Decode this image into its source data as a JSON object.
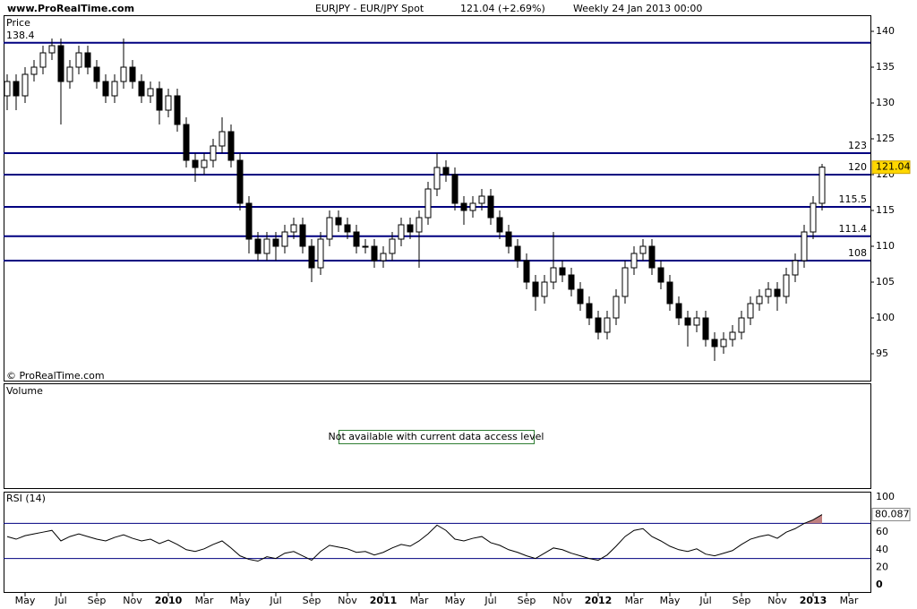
{
  "header": {
    "site": "www.ProRealTime.com",
    "symbol": "EURJPY - EUR/JPY Spot",
    "change": "121.04 (+2.69%)",
    "period": "Weekly  24 Jan 2013 00:00"
  },
  "volume_panel": {
    "label": "Volume",
    "message": "Not available with current data access level"
  },
  "chart_data": [
    {
      "type": "candlestick",
      "title": "Price",
      "copyright": "© ProRealTime.com",
      "up_color": "#ffffff",
      "down_color": "#000000",
      "level_color": "#000080",
      "xlim": [
        -1.2,
        47.2
      ],
      "ylim": [
        91.25,
        142.25
      ],
      "yticks": [
        95,
        100,
        105,
        110,
        115,
        120,
        125,
        130,
        135,
        140
      ],
      "xticks": [
        {
          "value": 0,
          "label": "May"
        },
        {
          "value": 2,
          "label": "Jul"
        },
        {
          "value": 4,
          "label": "Sep"
        },
        {
          "value": 6,
          "label": "Nov"
        },
        {
          "value": 8,
          "label": "2010"
        },
        {
          "value": 10,
          "label": "Mar"
        },
        {
          "value": 12,
          "label": "May"
        },
        {
          "value": 14,
          "label": "Jul"
        },
        {
          "value": 16,
          "label": "Sep"
        },
        {
          "value": 18,
          "label": "Nov"
        },
        {
          "value": 20,
          "label": "2011"
        },
        {
          "value": 22,
          "label": "Mar"
        },
        {
          "value": 24,
          "label": "May"
        },
        {
          "value": 26,
          "label": "Jul"
        },
        {
          "value": 28,
          "label": "Sep"
        },
        {
          "value": 30,
          "label": "Nov"
        },
        {
          "value": 32,
          "label": "2012"
        },
        {
          "value": 34,
          "label": "Mar"
        },
        {
          "value": 36,
          "label": "May"
        },
        {
          "value": 38,
          "label": "Jul"
        },
        {
          "value": 40,
          "label": "Sep"
        },
        {
          "value": 42,
          "label": "Nov"
        },
        {
          "value": 44,
          "label": "2013"
        },
        {
          "value": 46,
          "label": "Mar"
        }
      ],
      "levels": [
        {
          "value": 138.4,
          "side": "left"
        },
        {
          "value": 123,
          "side": "right"
        },
        {
          "value": 120,
          "side": "right"
        },
        {
          "value": 115.5,
          "side": "right"
        },
        {
          "value": 111.4,
          "side": "right"
        },
        {
          "value": 108,
          "side": "right"
        }
      ],
      "x": [
        -1,
        -0.5,
        0,
        0.5,
        1,
        1.5,
        2,
        2.5,
        3,
        3.5,
        4,
        4.5,
        5,
        5.5,
        6,
        6.5,
        7,
        7.5,
        8,
        8.5,
        9,
        9.5,
        10,
        10.5,
        11,
        11.5,
        12,
        12.5,
        13,
        13.5,
        14,
        14.5,
        15,
        15.5,
        16,
        16.5,
        17,
        17.5,
        18,
        18.5,
        19,
        19.5,
        20,
        20.5,
        21,
        21.5,
        22,
        22.5,
        23,
        23.5,
        24,
        24.5,
        25,
        25.5,
        26,
        26.5,
        27,
        27.5,
        28,
        28.5,
        29,
        29.5,
        30,
        30.5,
        31,
        31.5,
        32,
        32.5,
        33,
        33.5,
        34,
        34.5,
        35,
        35.5,
        36,
        36.5,
        37,
        37.5,
        38,
        38.5,
        39,
        39.5,
        40,
        40.5,
        41,
        41.5,
        42,
        42.5,
        43,
        43.5,
        44,
        44.5
      ],
      "ohlc": [
        [
          131,
          134,
          129,
          133
        ],
        [
          133,
          134,
          129,
          131
        ],
        [
          131,
          135,
          130,
          134
        ],
        [
          134,
          136,
          133,
          135
        ],
        [
          135,
          138,
          134,
          137
        ],
        [
          137,
          139,
          136,
          138
        ],
        [
          138,
          139,
          127,
          133
        ],
        [
          133,
          136,
          132,
          135
        ],
        [
          135,
          138,
          134,
          137
        ],
        [
          137,
          138,
          134,
          135
        ],
        [
          135,
          136,
          132,
          133
        ],
        [
          133,
          134,
          130,
          131
        ],
        [
          131,
          134,
          130,
          133
        ],
        [
          133,
          139,
          132,
          135
        ],
        [
          135,
          136,
          132,
          133
        ],
        [
          133,
          134,
          130,
          131
        ],
        [
          131,
          133,
          130,
          132
        ],
        [
          132,
          133,
          127,
          129
        ],
        [
          129,
          132,
          128,
          131
        ],
        [
          131,
          132,
          126,
          127
        ],
        [
          127,
          128,
          121,
          122
        ],
        [
          122,
          123,
          119,
          121
        ],
        [
          121,
          123,
          120,
          122
        ],
        [
          122,
          125,
          121,
          124
        ],
        [
          124,
          128,
          123,
          126
        ],
        [
          126,
          127,
          121,
          122
        ],
        [
          122,
          123,
          115,
          116
        ],
        [
          116,
          117,
          109,
          111
        ],
        [
          111,
          112,
          108,
          109
        ],
        [
          109,
          112,
          108,
          111
        ],
        [
          111,
          112,
          108,
          110
        ],
        [
          110,
          113,
          109,
          112
        ],
        [
          112,
          114,
          111,
          113
        ],
        [
          113,
          114,
          109,
          110
        ],
        [
          110,
          111,
          105,
          107
        ],
        [
          107,
          112,
          106,
          111
        ],
        [
          111,
          115,
          110,
          114
        ],
        [
          114,
          115,
          112,
          113
        ],
        [
          113,
          114,
          111,
          112
        ],
        [
          112,
          113,
          109,
          110
        ],
        [
          110,
          111,
          109,
          110
        ],
        [
          110,
          111,
          107,
          108
        ],
        [
          108,
          110,
          107,
          109
        ],
        [
          109,
          112,
          108,
          111
        ],
        [
          111,
          114,
          110,
          113
        ],
        [
          113,
          114,
          111,
          112
        ],
        [
          112,
          115,
          107,
          114
        ],
        [
          114,
          119,
          113,
          118
        ],
        [
          118,
          123,
          117,
          121
        ],
        [
          121,
          122,
          119,
          120
        ],
        [
          120,
          121,
          115,
          116
        ],
        [
          116,
          117,
          113,
          115
        ],
        [
          115,
          117,
          114,
          116
        ],
        [
          116,
          118,
          115,
          117
        ],
        [
          117,
          118,
          113,
          114
        ],
        [
          114,
          115,
          111,
          112
        ],
        [
          112,
          113,
          109,
          110
        ],
        [
          110,
          111,
          107,
          108
        ],
        [
          108,
          109,
          104,
          105
        ],
        [
          105,
          106,
          101,
          103
        ],
        [
          103,
          106,
          102,
          105
        ],
        [
          105,
          112,
          104,
          107
        ],
        [
          107,
          108,
          105,
          106
        ],
        [
          106,
          107,
          103,
          104
        ],
        [
          104,
          105,
          101,
          102
        ],
        [
          102,
          103,
          99,
          100
        ],
        [
          100,
          101,
          97,
          98
        ],
        [
          98,
          101,
          97,
          100
        ],
        [
          100,
          104,
          99,
          103
        ],
        [
          103,
          108,
          102,
          107
        ],
        [
          107,
          110,
          106,
          109
        ],
        [
          109,
          111,
          108,
          110
        ],
        [
          110,
          111,
          106,
          107
        ],
        [
          107,
          108,
          104,
          105
        ],
        [
          105,
          106,
          101,
          102
        ],
        [
          102,
          103,
          99,
          100
        ],
        [
          100,
          101,
          96,
          99
        ],
        [
          99,
          101,
          98,
          100
        ],
        [
          100,
          101,
          96,
          97
        ],
        [
          97,
          98,
          94,
          96
        ],
        [
          96,
          98,
          95,
          97
        ],
        [
          97,
          99,
          96,
          98
        ],
        [
          98,
          101,
          97,
          100
        ],
        [
          100,
          103,
          99,
          102
        ],
        [
          102,
          104,
          101,
          103
        ],
        [
          103,
          105,
          102,
          104
        ],
        [
          104,
          105,
          101,
          103
        ],
        [
          103,
          107,
          102,
          106
        ],
        [
          106,
          109,
          105,
          108
        ],
        [
          108,
          113,
          107,
          112
        ],
        [
          112,
          117,
          111,
          116
        ],
        [
          116,
          121.5,
          115,
          121.04
        ]
      ]
    },
    {
      "type": "line",
      "title": "RSI (14)",
      "color": "#000000",
      "overbought_fill": "#c08080",
      "ref_color": "#000080",
      "ylim": [
        -9.2,
        105.1
      ],
      "yticks": [
        0,
        20,
        40,
        60,
        100
      ],
      "ref_lines": [
        70,
        30
      ],
      "values": [
        55,
        52,
        56,
        58,
        60,
        62,
        50,
        55,
        58,
        55,
        52,
        50,
        54,
        57,
        53,
        50,
        52,
        47,
        51,
        46,
        40,
        38,
        41,
        46,
        50,
        42,
        33,
        29,
        27,
        32,
        30,
        36,
        38,
        33,
        28,
        38,
        45,
        43,
        41,
        37,
        38,
        34,
        37,
        42,
        46,
        44,
        50,
        58,
        68,
        62,
        52,
        50,
        53,
        55,
        48,
        45,
        40,
        37,
        33,
        30,
        36,
        42,
        40,
        36,
        33,
        30,
        28,
        34,
        44,
        55,
        62,
        64,
        55,
        50,
        44,
        40,
        38,
        41,
        35,
        33,
        36,
        39,
        46,
        52,
        55,
        57,
        53,
        60,
        64,
        70,
        74,
        80.087
      ]
    }
  ]
}
